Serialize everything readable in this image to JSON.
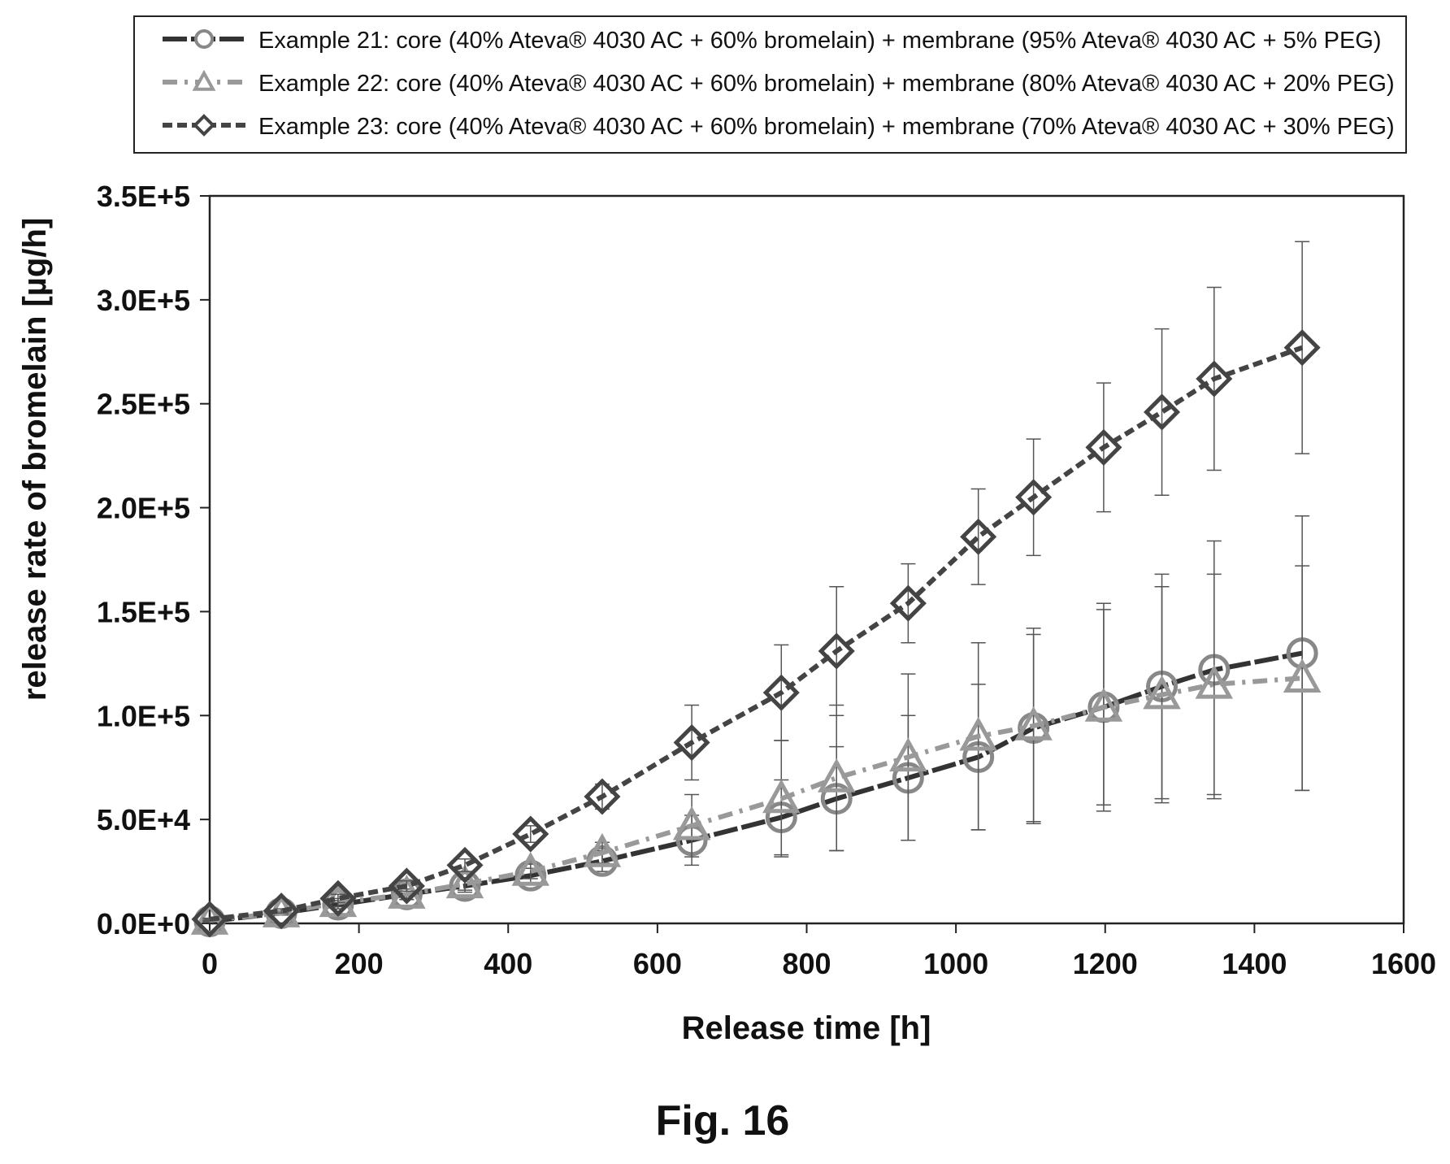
{
  "figure_caption": "Fig. 16",
  "chart_data": {
    "type": "line",
    "xlabel": "Release time [h]",
    "ylabel": "release rate of bromelain [µg/h]",
    "xlim": [
      0,
      1600
    ],
    "ylim": [
      0,
      350000
    ],
    "x_ticks": [
      0,
      200,
      400,
      600,
      800,
      1000,
      1200,
      1400,
      1600
    ],
    "x_tick_labels": [
      "0",
      "200",
      "400",
      "600",
      "800",
      "1000",
      "1200",
      "1400",
      "1600"
    ],
    "y_ticks": [
      0,
      50000,
      100000,
      150000,
      200000,
      250000,
      300000,
      350000
    ],
    "y_tick_labels": [
      "0.0E+0",
      "5.0E+4",
      "1.0E+5",
      "1.5E+5",
      "2.0E+5",
      "2.5E+5",
      "3.0E+5",
      "3.5E+5"
    ],
    "grid": false,
    "legend_position": "top",
    "series": [
      {
        "name": "Example 21: core (40% Ateva® 4030 AC + 60% bromelain) + membrane (95% Ateva® 4030 AC + 5% PEG)",
        "marker": "circle",
        "line_style": "long-dash-solid",
        "color": "#333333",
        "marker_color": "#888888",
        "x": [
          0,
          96,
          172,
          264,
          342,
          430,
          526,
          646,
          766,
          840,
          936,
          1030,
          1104,
          1198,
          1276,
          1346,
          1464
        ],
        "y": [
          1000,
          5000,
          9000,
          14000,
          18000,
          23000,
          30000,
          40000,
          51000,
          60000,
          70000,
          80000,
          94000,
          104000,
          114000,
          122000,
          130000
        ],
        "error": [
          500,
          1000,
          2000,
          2500,
          3000,
          3500,
          5000,
          12000,
          18000,
          25000,
          30000,
          35000,
          45000,
          50000,
          54000,
          62000,
          66000
        ]
      },
      {
        "name": "Example 22: core (40% Ateva® 4030 AC + 60% bromelain) + membrane (80% Ateva® 4030 AC + 20% PEG)",
        "marker": "triangle",
        "line_style": "dash-dot",
        "color": "#999999",
        "marker_color": "#999999",
        "x": [
          0,
          96,
          172,
          264,
          342,
          430,
          526,
          646,
          766,
          840,
          936,
          1030,
          1104,
          1198,
          1276,
          1346,
          1464
        ],
        "y": [
          1500,
          5000,
          10000,
          14000,
          19000,
          25000,
          34000,
          47000,
          60000,
          70000,
          80000,
          90000,
          95000,
          104000,
          110000,
          115000,
          118000
        ],
        "error": [
          500,
          1000,
          2000,
          2500,
          3000,
          3500,
          5000,
          15000,
          28000,
          35000,
          40000,
          45000,
          47000,
          47000,
          52000,
          53000,
          54000
        ]
      },
      {
        "name": "Example 23: core (40% Ateva® 4030 AC + 60% bromelain) + membrane (70% Ateva® 4030 AC + 30% PEG)",
        "marker": "diamond",
        "line_style": "dashed",
        "color": "#444444",
        "marker_color": "#444444",
        "x": [
          0,
          96,
          172,
          264,
          342,
          430,
          526,
          646,
          766,
          840,
          936,
          1030,
          1104,
          1198,
          1276,
          1346,
          1464
        ],
        "y": [
          2000,
          6000,
          12000,
          18000,
          28000,
          43000,
          61000,
          87000,
          111000,
          131000,
          154000,
          186000,
          205000,
          229000,
          246000,
          262000,
          277000
        ],
        "error": [
          500,
          1000,
          2000,
          2500,
          3000,
          4000,
          6000,
          18000,
          23000,
          31000,
          19000,
          23000,
          28000,
          31000,
          40000,
          44000,
          51000
        ]
      }
    ]
  }
}
